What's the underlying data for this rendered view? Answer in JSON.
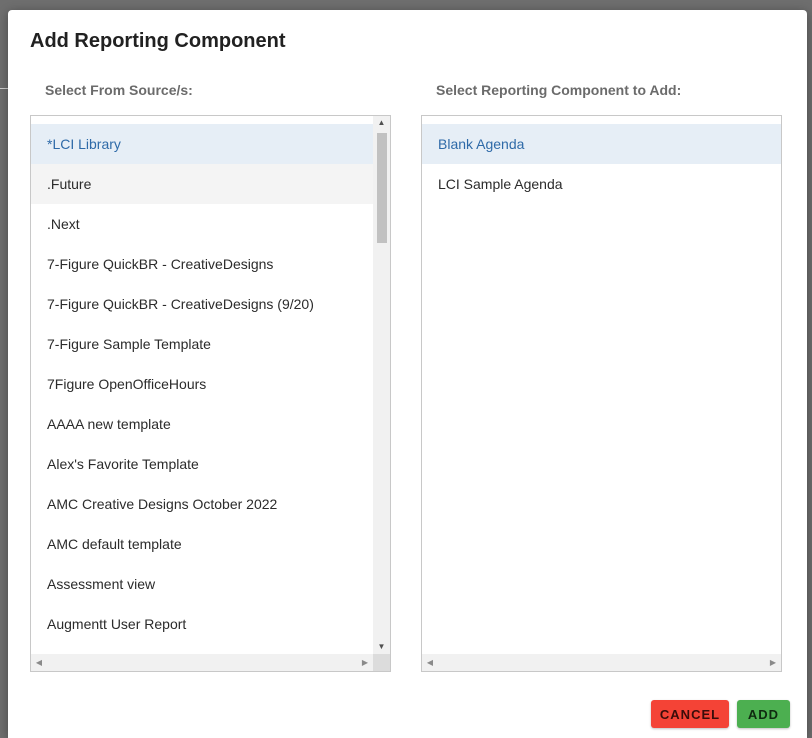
{
  "dialog": {
    "title": "Add Reporting Component"
  },
  "source_panel": {
    "label": "Select From Source/s:",
    "items": [
      "*LCI Library",
      ".Future",
      ".Next",
      "7-Figure QuickBR - CreativeDesigns",
      "7-Figure QuickBR - CreativeDesigns (9/20)",
      "7-Figure Sample Template",
      "7Figure OpenOfficeHours",
      "AAAA new template",
      "Alex's Favorite Template",
      "AMC Creative Designs October 2022",
      "AMC default template",
      "Assessment view",
      "Augmentt User Report"
    ],
    "selected_index": 0,
    "hover_index": 1
  },
  "component_panel": {
    "label": "Select Reporting Component to Add:",
    "items": [
      "Blank Agenda",
      "LCI Sample Agenda"
    ],
    "selected_index": 0
  },
  "buttons": {
    "cancel_label": "CANCEL",
    "add_label": "ADD"
  },
  "icons": {
    "scroll_up": "triangle-up-icon",
    "scroll_down": "triangle-down-icon",
    "scroll_left": "triangle-left-icon",
    "scroll_right": "triangle-right-icon"
  },
  "colors": {
    "selected_bg": "#e6eef6",
    "selected_text": "#2e6aa8",
    "cancel": "#f44336",
    "add": "#4caf50"
  }
}
